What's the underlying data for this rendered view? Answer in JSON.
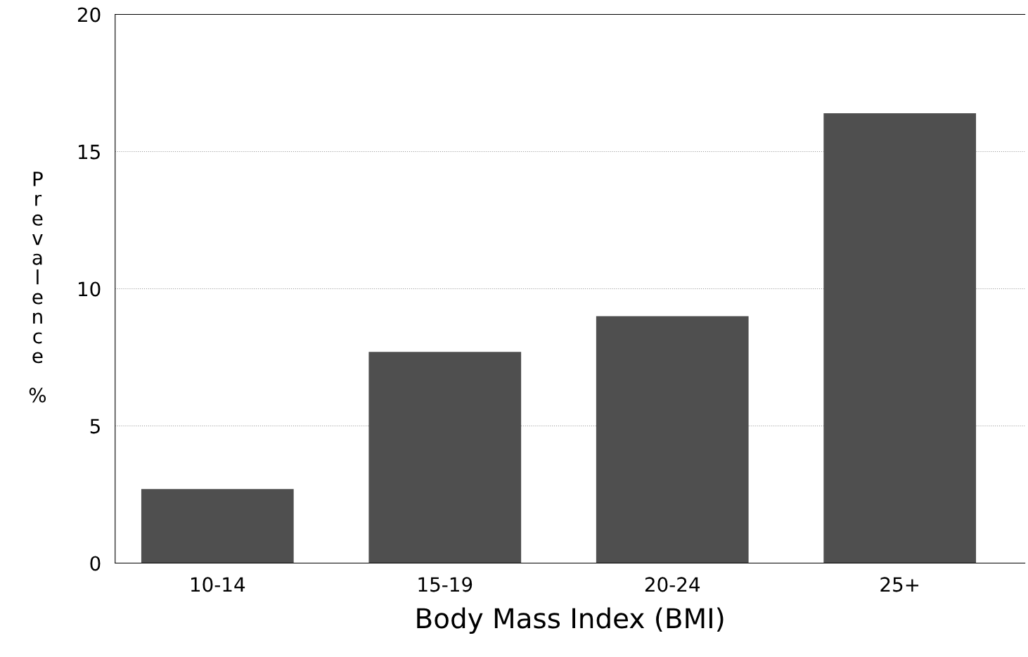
{
  "chart_data": {
    "type": "bar",
    "xlabel": "Body Mass Index (BMI)",
    "ylabel": "Prevalence %",
    "categories": [
      "10-14",
      "15-19",
      "20-24",
      "25+"
    ],
    "values": [
      2.7,
      7.7,
      9.0,
      16.4
    ],
    "color": "#4f4f4f",
    "ylim": [
      0,
      20
    ],
    "yticks": [
      0,
      5,
      10,
      15,
      20
    ],
    "grid": "y"
  }
}
